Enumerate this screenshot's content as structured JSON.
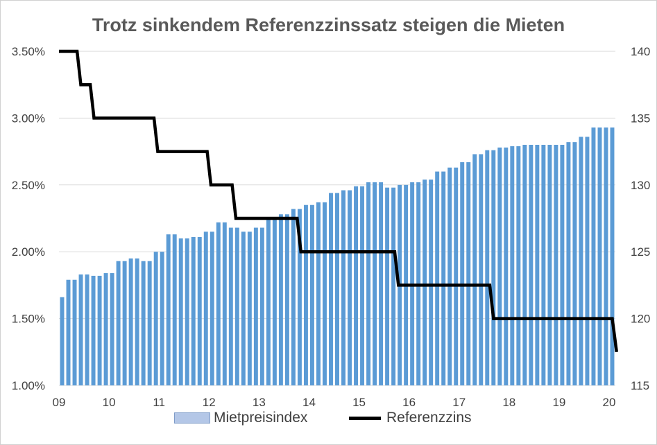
{
  "chart_data": {
    "type": "bar+line",
    "title": "Trotz sinkendem Referenzzinssatz steigen die Mieten",
    "x_tick_labels": [
      "09",
      "10",
      "11",
      "12",
      "13",
      "14",
      "15",
      "16",
      "17",
      "18",
      "19",
      "20"
    ],
    "y_left": {
      "min": 1.0,
      "max": 3.5,
      "ticks": [
        "1.00%",
        "1.50%",
        "2.00%",
        "2.50%",
        "3.00%",
        "3.50%"
      ],
      "tick_values": [
        1.0,
        1.5,
        2.0,
        2.5,
        3.0,
        3.5
      ]
    },
    "y_right": {
      "min": 115,
      "max": 140,
      "ticks": [
        "115",
        "120",
        "125",
        "130",
        "135",
        "140"
      ],
      "tick_values": [
        115,
        120,
        125,
        130,
        135,
        140
      ]
    },
    "grid": "horizontal",
    "legend_position": "bottom",
    "series": [
      {
        "name": "Mietpreisindex",
        "type": "bar",
        "axis": "right",
        "color": "#5b9bd5",
        "values": [
          121.6,
          122.9,
          122.9,
          123.3,
          123.3,
          123.2,
          123.2,
          123.4,
          123.4,
          124.3,
          124.3,
          124.5,
          124.5,
          124.3,
          124.3,
          125.0,
          125.0,
          126.3,
          126.3,
          126.0,
          126.0,
          126.1,
          126.1,
          126.5,
          126.5,
          127.2,
          127.2,
          126.8,
          126.8,
          126.5,
          126.5,
          126.8,
          126.8,
          127.4,
          127.4,
          127.8,
          127.8,
          128.2,
          128.2,
          128.5,
          128.5,
          128.7,
          128.7,
          129.4,
          129.4,
          129.6,
          129.6,
          129.9,
          129.9,
          130.2,
          130.2,
          130.2,
          129.8,
          129.8,
          130.0,
          130.0,
          130.2,
          130.2,
          130.4,
          130.4,
          131.0,
          131.0,
          131.3,
          131.3,
          131.7,
          131.7,
          132.3,
          132.3,
          132.6,
          132.6,
          132.8,
          132.8,
          132.9,
          132.9,
          133.0,
          133.0,
          133.0,
          133.0,
          133.0,
          133.0,
          133.0,
          133.2,
          133.2,
          133.6,
          133.6,
          134.3,
          134.3,
          134.3,
          134.3
        ],
        "color_fill": "#5b9bd5"
      },
      {
        "name": "Referenzzins",
        "type": "line",
        "axis": "left",
        "color": "#000000",
        "points": [
          [
            0.0,
            3.5
          ],
          [
            2.9,
            3.5
          ],
          [
            3.5,
            3.25
          ],
          [
            5.0,
            3.25
          ],
          [
            5.6,
            3.0
          ],
          [
            15.2,
            3.0
          ],
          [
            15.8,
            2.75
          ],
          [
            23.7,
            2.75
          ],
          [
            24.3,
            2.5
          ],
          [
            27.7,
            2.5
          ],
          [
            28.3,
            2.25
          ],
          [
            38.1,
            2.25
          ],
          [
            38.7,
            2.0
          ],
          [
            53.7,
            2.0
          ],
          [
            54.3,
            1.75
          ],
          [
            68.9,
            1.75
          ],
          [
            69.5,
            1.5
          ],
          [
            88.5,
            1.5
          ],
          [
            89.2,
            1.25
          ]
        ]
      }
    ]
  },
  "legend": {
    "bar_label": "Mietpreisindex",
    "line_label": "Referenzzins"
  }
}
